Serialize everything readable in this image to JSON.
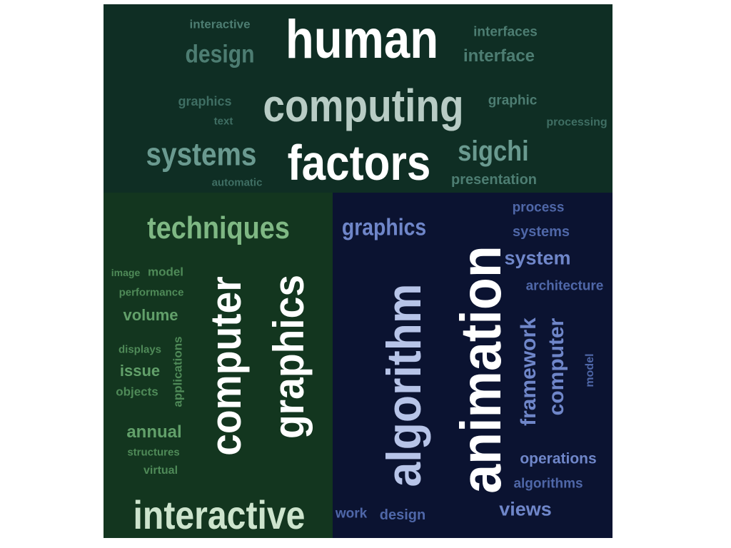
{
  "colors": {
    "background": "#ffffff",
    "top_panel": "#0f2e24",
    "left_panel": "#13361f",
    "right_panel": "#0b1331",
    "top_dim": "#4d7d72",
    "top_mid": "#6a9a90",
    "top_bright": "#ffffff",
    "left_dim": "#4f8a58",
    "left_mid": "#7fb884",
    "left_bright": "#ffffff",
    "right_dim": "#4f67a8",
    "right_mid": "#6f86c9",
    "right_bright": "#ffffff"
  },
  "top_cluster": {
    "human": "human",
    "interactive": "interactive",
    "interfaces": "interfaces",
    "design": "design",
    "interface": "interface",
    "graphics": "graphics",
    "computing": "computing",
    "graphic": "graphic",
    "text": "text",
    "processing": "processing",
    "systems": "systems",
    "factors": "factors",
    "sigchi": "sigchi",
    "automatic": "automatic",
    "presentation": "presentation"
  },
  "left_cluster": {
    "techniques": "techniques",
    "image": "image",
    "model": "model",
    "performance": "performance",
    "volume": "volume",
    "displays": "displays",
    "issue": "issue",
    "objects": "objects",
    "applications": "applications",
    "annual": "annual",
    "structures": "structures",
    "virtual": "virtual",
    "computer": "computer",
    "graphics": "graphics",
    "interactive": "interactive"
  },
  "right_cluster": {
    "graphics": "graphics",
    "algorithm": "algorithm",
    "animation": "animation",
    "process": "process",
    "systems": "systems",
    "system": "system",
    "architecture": "architecture",
    "framework": "framework",
    "computer": "computer",
    "model": "model",
    "operations": "operations",
    "algorithms": "algorithms",
    "views": "views",
    "work": "work",
    "design": "design"
  }
}
